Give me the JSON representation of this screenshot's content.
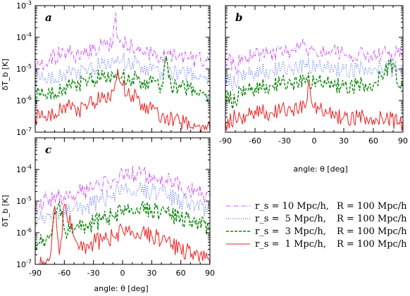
{
  "figure": {
    "x_axis_label": "angle: θ [deg]",
    "y_axis_label": "δT_b [K]"
  },
  "legend": {
    "placement": "bottom-right",
    "entries": [
      {
        "rs_label": "r_s = 10 Mpc/h,",
        "R_label": "R = 100 Mpc/h",
        "color": "#cc55ee",
        "style": "dash-dot"
      },
      {
        "rs_label": "r_s =  5 Mpc/h,",
        "R_label": "R = 100 Mpc/h",
        "color": "#3355ee",
        "style": "dotted"
      },
      {
        "rs_label": "r_s =  3 Mpc/h,",
        "R_label": "R = 100 Mpc/h",
        "color": "#118811",
        "style": "dashed"
      },
      {
        "rs_label": "r_s =  1 Mpc/h,",
        "R_label": "R = 100 Mpc/h",
        "color": "#ee2222",
        "style": "solid"
      }
    ]
  },
  "chart_data": [
    {
      "panel": "a",
      "type": "line",
      "y_scale": "log",
      "xlim": [
        -90,
        90
      ],
      "ylim": [
        1e-07,
        0.001
      ],
      "x_ticks": [],
      "y_ticks": [
        "10-7",
        "10-6",
        "10-5",
        "10-4",
        "10-3"
      ],
      "series": [
        {
          "key": "rs10",
          "x": [
            -90,
            -75,
            -60,
            -45,
            -30,
            -20,
            -10,
            -7,
            -5,
            -3,
            0,
            10,
            20,
            30,
            45,
            60,
            75,
            90
          ],
          "y": [
            1.5e-05,
            2e-05,
            3.5e-05,
            2.5e-05,
            4.5e-05,
            5.5e-05,
            7e-05,
            0.0006,
            9e-05,
            7e-05,
            6e-05,
            5e-05,
            3.5e-05,
            3e-05,
            2.5e-05,
            2.5e-05,
            2e-05,
            1.8e-05
          ]
        },
        {
          "key": "rs5",
          "x": [
            -90,
            -75,
            -60,
            -45,
            -30,
            -20,
            -10,
            -5,
            0,
            10,
            20,
            30,
            40,
            45,
            50,
            60,
            75,
            85,
            90
          ],
          "y": [
            5e-06,
            6e-06,
            7e-06,
            8e-06,
            1e-05,
            1.5e-05,
            2e-05,
            2.5e-05,
            2e-05,
            1.6e-05,
            1.2e-05,
            9e-06,
            8e-06,
            2e-05,
            8e-06,
            7e-06,
            6e-06,
            5e-06,
            5e-06
          ]
        },
        {
          "key": "rs3",
          "x": [
            -90,
            -75,
            -60,
            -45,
            -30,
            -20,
            -10,
            -5,
            0,
            10,
            20,
            30,
            40,
            45,
            50,
            60,
            75,
            85,
            90
          ],
          "y": [
            1.5e-06,
            2e-06,
            2.5e-06,
            3.5e-06,
            4.5e-06,
            6e-06,
            7e-06,
            8e-06,
            6e-06,
            5e-06,
            4e-06,
            3.5e-06,
            3e-06,
            2.5e-05,
            3e-06,
            2.5e-06,
            2e-06,
            1.5e-06,
            1.2e-06
          ]
        },
        {
          "key": "rs1",
          "x": [
            -90,
            -75,
            -60,
            -45,
            -30,
            -20,
            -10,
            -5,
            0,
            10,
            20,
            30,
            45,
            60,
            75,
            90
          ],
          "y": [
            3e-07,
            4e-07,
            7e-07,
            5e-07,
            9e-07,
            1.2e-06,
            2e-06,
            1e-05,
            3e-06,
            1.5e-06,
            8e-07,
            5e-07,
            3e-07,
            2e-07,
            1.5e-07,
            1.2e-07
          ]
        }
      ]
    },
    {
      "panel": "b",
      "type": "line",
      "y_scale": "log",
      "xlim": [
        -90,
        90
      ],
      "ylim": [
        1e-07,
        0.001
      ],
      "x_ticks": [
        "-90",
        "-60",
        "-30",
        "0",
        "30",
        "60",
        "90"
      ],
      "y_ticks": [],
      "series": [
        {
          "key": "rs10",
          "x": [
            -90,
            -80,
            -70,
            -60,
            -45,
            -30,
            -15,
            -10,
            -5,
            0,
            15,
            30,
            45,
            60,
            75,
            90
          ],
          "y": [
            2.5e-05,
            1.2e-05,
            2.5e-05,
            2.5e-05,
            3e-05,
            3.5e-05,
            4e-05,
            6e-05,
            4.5e-05,
            4e-05,
            3.5e-05,
            3.2e-05,
            3e-05,
            3e-05,
            3e-05,
            2.8e-05
          ]
        },
        {
          "key": "rs5",
          "x": [
            -90,
            -80,
            -75,
            -60,
            -45,
            -30,
            -15,
            -8,
            0,
            15,
            30,
            45,
            60,
            80,
            85,
            90
          ],
          "y": [
            7e-06,
            3e-06,
            8e-06,
            8e-06,
            9e-06,
            1e-05,
            1.2e-05,
            1.5e-05,
            1.2e-05,
            1.1e-05,
            1e-05,
            1e-05,
            1e-05,
            1e-05,
            1e-05,
            9e-06
          ]
        },
        {
          "key": "rs3",
          "x": [
            -90,
            -80,
            -75,
            -60,
            -45,
            -30,
            -15,
            -8,
            0,
            15,
            30,
            45,
            60,
            80,
            85,
            90
          ],
          "y": [
            2e-06,
            8e-07,
            2.5e-06,
            2.5e-06,
            3e-06,
            3.5e-06,
            4e-06,
            5e-06,
            4e-06,
            3.5e-06,
            3e-06,
            3e-06,
            3e-06,
            1.5e-05,
            3e-06,
            2.5e-06
          ]
        },
        {
          "key": "rs1",
          "x": [
            -90,
            -80,
            -75,
            -60,
            -45,
            -30,
            -15,
            -8,
            -5,
            0,
            15,
            30,
            45,
            60,
            75,
            90
          ],
          "y": [
            2e-07,
            3e-07,
            3e-07,
            5e-07,
            4e-07,
            5e-07,
            6e-07,
            8e-07,
            4e-06,
            6e-07,
            4e-07,
            3e-07,
            3e-07,
            2.5e-07,
            2.5e-07,
            2e-07
          ]
        }
      ]
    },
    {
      "panel": "c",
      "type": "line",
      "y_scale": "log",
      "xlim": [
        -90,
        90
      ],
      "ylim": [
        1e-07,
        0.001
      ],
      "x_ticks": [
        "-90",
        "-60",
        "-30",
        "0",
        "30",
        "60",
        "90"
      ],
      "y_ticks": [
        "10-7",
        "10-6",
        "10-5",
        "10-4"
      ],
      "series": [
        {
          "key": "rs10",
          "x": [
            -90,
            -75,
            -60,
            -45,
            -30,
            -15,
            0,
            15,
            30,
            45,
            60,
            75,
            90
          ],
          "y": [
            7e-06,
            1.2e-05,
            1.5e-05,
            1.8e-05,
            2.5e-05,
            4e-05,
            8e-05,
            7e-05,
            6e-05,
            4.5e-05,
            3e-05,
            2e-05,
            1.3e-05
          ]
        },
        {
          "key": "rs5",
          "x": [
            -90,
            -75,
            -60,
            -45,
            -30,
            -15,
            0,
            15,
            30,
            45,
            60,
            75,
            90
          ],
          "y": [
            3e-06,
            4e-06,
            5e-06,
            6e-06,
            8e-06,
            1.3e-05,
            2.5e-05,
            2.2e-05,
            2e-05,
            1.6e-05,
            1e-05,
            7e-06,
            5e-06
          ]
        },
        {
          "key": "rs3",
          "x": [
            -90,
            -75,
            -65,
            -60,
            -45,
            -30,
            -15,
            0,
            15,
            30,
            45,
            60,
            75,
            90
          ],
          "y": [
            5e-07,
            8e-07,
            1e-05,
            1.2e-06,
            1.5e-06,
            2e-06,
            3e-06,
            5e-06,
            6e-06,
            5e-06,
            4e-06,
            3e-06,
            2e-06,
            1.5e-06
          ]
        },
        {
          "key": "rs1",
          "x": [
            -90,
            -75,
            -70,
            -65,
            -60,
            -45,
            -30,
            -15,
            0,
            15,
            30,
            45,
            60,
            75,
            85,
            90
          ],
          "y": [
            1e-07,
            1.5e-07,
            7e-06,
            2e-07,
            8e-06,
            3e-07,
            5e-07,
            6e-07,
            1.2e-06,
            1e-06,
            8e-07,
            5e-07,
            3e-07,
            2e-07,
            1.5e-07,
            1e-07
          ]
        }
      ]
    }
  ]
}
